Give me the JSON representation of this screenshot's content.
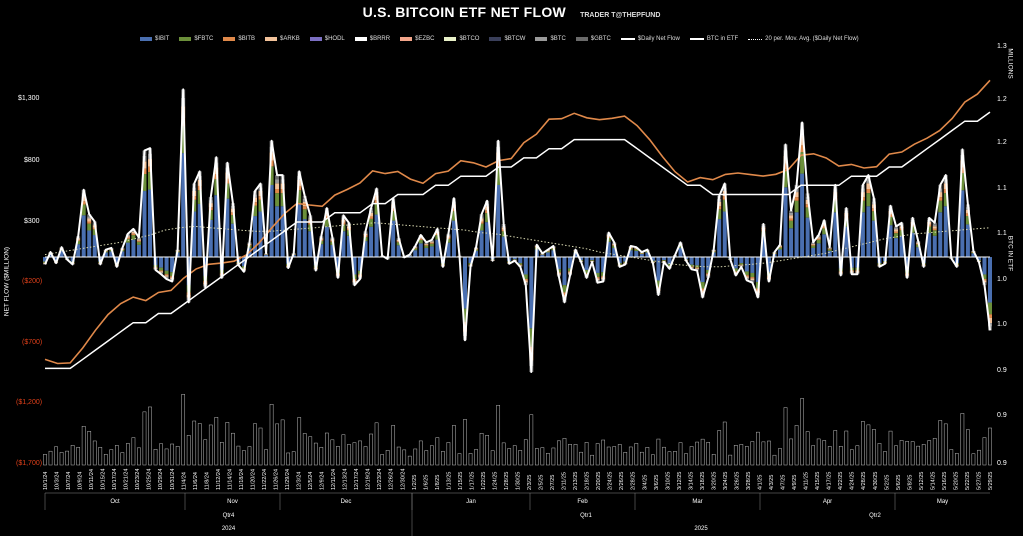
{
  "title": "U.S. BITCOIN ETF NET FLOW",
  "subtitle": "TRADER T@THEPFUND",
  "legend": [
    {
      "label": "$IBIT",
      "color": "#4a6fb0",
      "kind": "bar"
    },
    {
      "label": "$FBTC",
      "color": "#6b8f3a",
      "kind": "bar"
    },
    {
      "label": "$BITB",
      "color": "#e0894a",
      "kind": "bar"
    },
    {
      "label": "$ARKB",
      "color": "#f2c29a",
      "kind": "bar"
    },
    {
      "label": "$HODL",
      "color": "#7b6fc2",
      "kind": "bar"
    },
    {
      "label": "$BRRR",
      "color": "#ffffff",
      "kind": "bar"
    },
    {
      "label": "$EZBC",
      "color": "#f3a58a",
      "kind": "bar"
    },
    {
      "label": "$BTCO",
      "color": "#e8f0c8",
      "kind": "bar"
    },
    {
      "label": "$BTCW",
      "color": "#3a3f5a",
      "kind": "bar"
    },
    {
      "label": "$BTC",
      "color": "#9a9a9a",
      "kind": "bar"
    },
    {
      "label": "$GBTC",
      "color": "#6a6a6a",
      "kind": "bar"
    },
    {
      "label": "$Daily Net Flow",
      "color": "#ffffff",
      "kind": "line"
    },
    {
      "label": "BTC in ETF",
      "color": "#ffffff",
      "kind": "line"
    },
    {
      "label": "20 per. Mov. Avg. ($Daily Net Flow)",
      "color": "#ffffff",
      "kind": "dotted"
    }
  ],
  "chart_data": {
    "type": "bar",
    "title": "U.S. BITCOIN ETF NET FLOW",
    "ylabel": "NET FLOW ($MILLION)",
    "y2label": "BTC IN ETF",
    "y3label": "MILLIONS",
    "ylim": [
      -1700,
      1300
    ],
    "y2lim": [
      0.85,
      1.3
    ],
    "y_ticks": [
      "$1,300",
      "$800",
      "$300",
      "($200)",
      "($700)",
      "($1,200)",
      "($1,700)"
    ],
    "y_ticks_right": [
      "1.3",
      "1.2",
      "1.2",
      "1.1",
      "1.1",
      "1.0",
      "1.0",
      "0.9",
      "0.9",
      "0.9"
    ],
    "grid": false,
    "legend_position": "top",
    "x_labels": [
      "10/1/24",
      "10/3/24",
      "10/7/24",
      "10/9/24",
      "10/11/24",
      "10/15/24",
      "10/17/24",
      "10/21/24",
      "10/23/24",
      "10/25/24",
      "10/29/24",
      "10/31/24",
      "11/4/24",
      "11/6/24",
      "11/8/24",
      "11/12/24",
      "11/14/24",
      "11/18/24",
      "11/20/24",
      "11/22/24",
      "11/26/24",
      "11/29/24",
      "12/3/24",
      "12/5/24",
      "12/9/24",
      "12/11/24",
      "12/13/24",
      "12/17/24",
      "12/19/24",
      "12/23/24",
      "12/26/24",
      "12/30/24",
      "1/2/25",
      "1/6/25",
      "1/8/25",
      "1/13/25",
      "1/15/25",
      "1/17/25",
      "1/22/25",
      "1/24/25",
      "1/28/25",
      "1/30/25",
      "2/3/25",
      "2/5/25",
      "2/7/25",
      "2/11/25",
      "2/13/25",
      "2/18/25",
      "2/20/25",
      "2/24/25",
      "2/26/25",
      "2/28/25",
      "3/4/25",
      "3/6/25",
      "3/10/25",
      "3/12/25",
      "3/14/25",
      "3/18/25",
      "3/20/25",
      "3/24/25",
      "3/26/25",
      "3/28/25",
      "4/1/25",
      "4/3/25",
      "4/7/25",
      "4/9/25",
      "4/11/25",
      "4/15/25",
      "4/17/25",
      "4/22/25",
      "4/24/25",
      "4/28/25",
      "4/30/25",
      "5/2/25",
      "5/6/25",
      "5/8/25",
      "5/12/25",
      "5/14/25",
      "5/16/25",
      "5/20/25",
      "5/22/25",
      "5/27/25",
      "5/29/25"
    ],
    "months": [
      "Oct",
      "Nov",
      "Dec",
      "Jan",
      "Feb",
      "Mar",
      "Apr",
      "May"
    ],
    "quarters": [
      "Qtr4",
      "Qtr1",
      "Qtr2"
    ],
    "years": [
      "2024",
      "2025"
    ],
    "series": [
      {
        "name": "$Daily Net Flow",
        "values": [
          -60,
          40,
          -50,
          80,
          -20,
          -60,
          170,
          550,
          350,
          290,
          -60,
          60,
          75,
          -80,
          75,
          190,
          230,
          160,
          870,
          890,
          -105,
          -140,
          -180,
          -200,
          60,
          1370,
          -370,
          600,
          700,
          -250,
          490,
          815,
          -170,
          770,
          440,
          -65,
          -120,
          120,
          540,
          600,
          30,
          950,
          670,
          670,
          -90,
          30,
          700,
          500,
          340,
          -110,
          170,
          400,
          160,
          -170,
          340,
          280,
          -230,
          -180,
          210,
          400,
          560,
          10,
          -15,
          480,
          155,
          -3,
          20,
          90,
          180,
          120,
          140,
          230,
          -80,
          190,
          480,
          10,
          -680,
          -80,
          80,
          350,
          460,
          -30,
          950,
          270,
          -55,
          -30,
          -80,
          -230,
          -940,
          100,
          30,
          60,
          90,
          -160,
          -370,
          -150,
          60,
          -40,
          -170,
          -40,
          -210,
          -200,
          200,
          120,
          -80,
          -60,
          90,
          80,
          40,
          60,
          -50,
          -310,
          -40,
          -95,
          15,
          120,
          -30,
          -100,
          -110,
          -330,
          -170,
          60,
          500,
          600,
          -20,
          -150,
          -80,
          -190,
          -210,
          -330,
          270,
          -200,
          40,
          100,
          920,
          380,
          590,
          1100,
          520,
          120,
          180,
          300,
          80,
          590,
          -150,
          400,
          -140,
          -140,
          590,
          670,
          480,
          -80,
          -55,
          420,
          250,
          280,
          -170,
          320,
          130,
          -80,
          320,
          280,
          590,
          670,
          -10,
          -80,
          880,
          430,
          50,
          -40,
          -230,
          -600
        ]
      },
      {
        "name": "BTC in ETF",
        "values": [
          0.95,
          0.95,
          0.95,
          0.96,
          0.97,
          0.98,
          0.99,
          1.0,
          1.0,
          1.01,
          1.01,
          1.02,
          1.03,
          1.04,
          1.05,
          1.06,
          1.07,
          1.08,
          1.09,
          1.1,
          1.11,
          1.11,
          1.11,
          1.12,
          1.12,
          1.12,
          1.13,
          1.13,
          1.14,
          1.14,
          1.14,
          1.15,
          1.15,
          1.16,
          1.16,
          1.16,
          1.17,
          1.17,
          1.18,
          1.18,
          1.19,
          1.19,
          1.2,
          1.2,
          1.2,
          1.2,
          1.2,
          1.19,
          1.18,
          1.17,
          1.16,
          1.15,
          1.15,
          1.14,
          1.14,
          1.14,
          1.14,
          1.14,
          1.14,
          1.14,
          1.15,
          1.15,
          1.15,
          1.15,
          1.16,
          1.16,
          1.16,
          1.17,
          1.17,
          1.18,
          1.19,
          1.2,
          1.21,
          1.22,
          1.22,
          1.23
        ]
      },
      {
        "name": "20 per. Mov. Avg. ($Daily Net Flow)",
        "values": [
          20,
          40,
          60,
          80,
          100,
          120,
          150,
          180,
          220,
          240,
          250,
          240,
          230,
          220,
          210,
          210,
          220,
          230,
          240,
          250,
          260,
          270,
          280,
          270,
          260,
          250,
          240,
          230,
          220,
          200,
          190,
          170,
          150,
          130,
          110,
          90,
          70,
          40,
          20,
          0,
          -20,
          -40,
          -60,
          -70,
          -80,
          -80,
          -70,
          -60,
          -50,
          -30,
          -10,
          10,
          30,
          60,
          90,
          120,
          150,
          170,
          190,
          200,
          210,
          220,
          230,
          240
        ]
      }
    ]
  }
}
